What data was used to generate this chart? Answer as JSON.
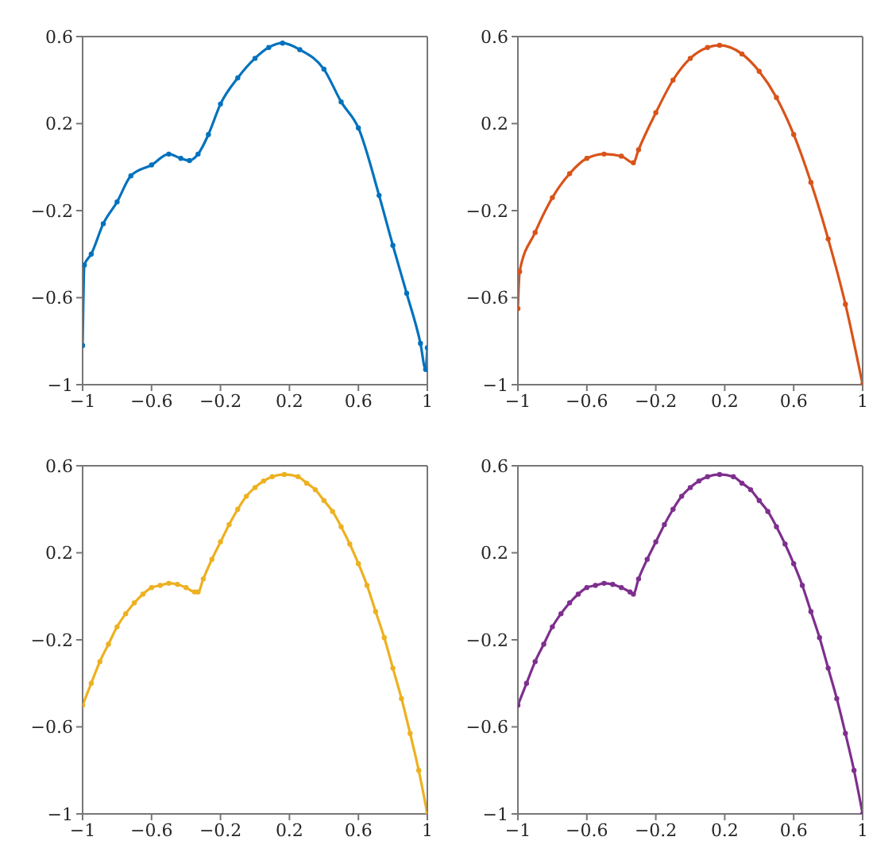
{
  "chart_data": [
    {
      "type": "line",
      "marker": "circle",
      "line_style": "solid",
      "xlim": [
        -1,
        1
      ],
      "ylim": [
        -1,
        0.6
      ],
      "xticks": [
        -1,
        -0.6,
        -0.2,
        0.2,
        0.6,
        1
      ],
      "yticks": [
        -1,
        -0.6,
        -0.2,
        0.2,
        0.6
      ],
      "series": [
        {
          "color": "#0072bd",
          "x": [
            -1,
            -0.99,
            -0.95,
            -0.88,
            -0.8,
            -0.72,
            -0.6,
            -0.5,
            -0.43,
            -0.38,
            -0.33,
            -0.27,
            -0.2,
            -0.1,
            0,
            0.08,
            0.16,
            0.26,
            0.4,
            0.5,
            0.6,
            0.72,
            0.8,
            0.88,
            0.96,
            0.99,
            1
          ],
          "values": [
            -0.82,
            -0.45,
            -0.4,
            -0.26,
            -0.16,
            -0.04,
            0.01,
            0.06,
            0.04,
            0.03,
            0.06,
            0.15,
            0.29,
            0.41,
            0.5,
            0.55,
            0.57,
            0.54,
            0.45,
            0.3,
            0.18,
            -0.13,
            -0.36,
            -0.58,
            -0.81,
            -0.93,
            -0.83
          ]
        }
      ]
    },
    {
      "type": "line",
      "marker": "circle",
      "line_style": "solid",
      "xlim": [
        -1,
        1
      ],
      "ylim": [
        -1,
        0.6
      ],
      "xticks": [
        -1,
        -0.6,
        -0.2,
        0.2,
        0.6,
        1
      ],
      "yticks": [
        -1,
        -0.6,
        -0.2,
        0.2,
        0.6
      ],
      "series": [
        {
          "color": "#d95319",
          "x": [
            -1,
            -0.99,
            -0.9,
            -0.8,
            -0.7,
            -0.6,
            -0.5,
            -0.4,
            -0.33,
            -0.3,
            -0.2,
            -0.1,
            0,
            0.1,
            0.17,
            0.3,
            0.4,
            0.5,
            0.6,
            0.7,
            0.8,
            0.9,
            1
          ],
          "values": [
            -0.65,
            -0.48,
            -0.3,
            -0.14,
            -0.03,
            0.04,
            0.06,
            0.05,
            0.02,
            0.08,
            0.25,
            0.4,
            0.5,
            0.55,
            0.56,
            0.52,
            0.44,
            0.32,
            0.15,
            -0.07,
            -0.33,
            -0.63,
            -1
          ]
        }
      ]
    },
    {
      "type": "line",
      "marker": "circle",
      "line_style": "solid",
      "xlim": [
        -1,
        1
      ],
      "ylim": [
        -1,
        0.6
      ],
      "xticks": [
        -1,
        -0.6,
        -0.2,
        0.2,
        0.6,
        1
      ],
      "yticks": [
        -1,
        -0.6,
        -0.2,
        0.2,
        0.6
      ],
      "series": [
        {
          "color": "#edb120",
          "x": [
            -1,
            -0.95,
            -0.9,
            -0.85,
            -0.8,
            -0.75,
            -0.7,
            -0.65,
            -0.6,
            -0.55,
            -0.5,
            -0.45,
            -0.4,
            -0.35,
            -0.33,
            -0.3,
            -0.25,
            -0.2,
            -0.15,
            -0.1,
            -0.05,
            0,
            0.05,
            0.1,
            0.17,
            0.25,
            0.3,
            0.35,
            0.4,
            0.45,
            0.5,
            0.55,
            0.6,
            0.65,
            0.7,
            0.75,
            0.8,
            0.85,
            0.9,
            0.95,
            1
          ],
          "values": [
            -0.5,
            -0.4,
            -0.3,
            -0.22,
            -0.14,
            -0.08,
            -0.03,
            0.01,
            0.04,
            0.05,
            0.06,
            0.055,
            0.04,
            0.02,
            0.02,
            0.08,
            0.17,
            0.25,
            0.33,
            0.4,
            0.46,
            0.5,
            0.53,
            0.55,
            0.56,
            0.55,
            0.52,
            0.49,
            0.44,
            0.39,
            0.32,
            0.24,
            0.15,
            0.05,
            -0.07,
            -0.19,
            -0.33,
            -0.47,
            -0.63,
            -0.8,
            -1
          ]
        }
      ]
    },
    {
      "type": "line",
      "marker": "circle",
      "line_style": "solid",
      "xlim": [
        -1,
        1
      ],
      "ylim": [
        -1,
        0.6
      ],
      "xticks": [
        -1,
        -0.6,
        -0.2,
        0.2,
        0.6,
        1
      ],
      "yticks": [
        -1,
        -0.6,
        -0.2,
        0.2,
        0.6
      ],
      "series": [
        {
          "color": "#7e2f8e",
          "x": [
            -1,
            -0.95,
            -0.9,
            -0.85,
            -0.8,
            -0.75,
            -0.7,
            -0.65,
            -0.6,
            -0.55,
            -0.5,
            -0.45,
            -0.4,
            -0.35,
            -0.33,
            -0.3,
            -0.25,
            -0.2,
            -0.15,
            -0.1,
            -0.05,
            0,
            0.05,
            0.1,
            0.17,
            0.25,
            0.3,
            0.35,
            0.4,
            0.45,
            0.5,
            0.55,
            0.6,
            0.65,
            0.7,
            0.75,
            0.8,
            0.85,
            0.9,
            0.95,
            1
          ],
          "values": [
            -0.5,
            -0.4,
            -0.3,
            -0.22,
            -0.14,
            -0.08,
            -0.03,
            0.01,
            0.04,
            0.05,
            0.06,
            0.055,
            0.04,
            0.02,
            0.01,
            0.08,
            0.17,
            0.25,
            0.33,
            0.4,
            0.46,
            0.5,
            0.53,
            0.55,
            0.56,
            0.55,
            0.52,
            0.49,
            0.44,
            0.39,
            0.32,
            0.24,
            0.15,
            0.05,
            -0.07,
            -0.19,
            -0.33,
            -0.47,
            -0.63,
            -0.8,
            -1
          ]
        }
      ]
    }
  ]
}
